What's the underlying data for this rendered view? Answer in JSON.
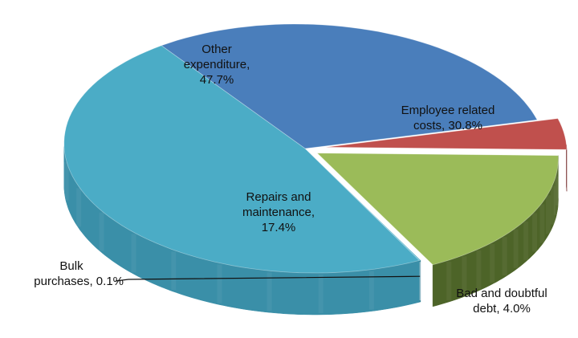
{
  "chart_data": {
    "type": "pie",
    "style": "3d-exploded-tilted",
    "title": "",
    "slices": [
      {
        "label": "Employee related costs",
        "value": 30.8,
        "color": "#4a7ebb"
      },
      {
        "label": "Bad and doubtful debt",
        "value": 4.0,
        "color": "#c0504d"
      },
      {
        "label": "Repairs and maintenance",
        "value": 17.4,
        "color": "#9bbb59"
      },
      {
        "label": "Bulk purchases",
        "value": 0.1,
        "color": "#4bacc6"
      },
      {
        "label": "Other expenditure",
        "value": 47.7,
        "color": "#4bacc6"
      }
    ],
    "labels": {
      "other": [
        "Other",
        "expenditure,",
        "47.7%"
      ],
      "employee": [
        "Employee related",
        "costs, 30.8%"
      ],
      "repairs": [
        "Repairs and",
        "maintenance,",
        "17.4%"
      ],
      "bulk": [
        "Bulk",
        "purchases, 0.1%"
      ],
      "bad": [
        "Bad and doubtful",
        "debt, 4.0%"
      ]
    }
  }
}
